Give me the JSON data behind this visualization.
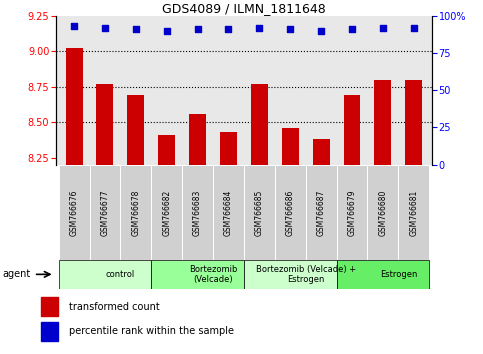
{
  "title": "GDS4089 / ILMN_1811648",
  "samples": [
    "GSM766676",
    "GSM766677",
    "GSM766678",
    "GSM766682",
    "GSM766683",
    "GSM766684",
    "GSM766685",
    "GSM766686",
    "GSM766687",
    "GSM766679",
    "GSM766680",
    "GSM766681"
  ],
  "bar_values": [
    9.02,
    8.77,
    8.69,
    8.41,
    8.56,
    8.43,
    8.77,
    8.46,
    8.38,
    8.69,
    8.8,
    8.8
  ],
  "percentile_values": [
    93,
    92,
    91,
    90,
    91,
    91,
    92,
    91,
    90,
    91,
    92,
    92
  ],
  "bar_color": "#cc0000",
  "dot_color": "#0000cc",
  "ylim_left": [
    8.2,
    9.25
  ],
  "ylim_right": [
    0,
    100
  ],
  "yticks_left": [
    8.25,
    8.5,
    8.75,
    9.0,
    9.25
  ],
  "yticks_right": [
    0,
    25,
    50,
    75,
    100
  ],
  "gridlines": [
    8.5,
    8.75,
    9.0
  ],
  "groups": [
    {
      "label": "control",
      "start": 0,
      "end": 3,
      "color": "#ccffcc"
    },
    {
      "label": "Bortezomib\n(Velcade)",
      "start": 3,
      "end": 6,
      "color": "#99ff99"
    },
    {
      "label": "Bortezomib (Velcade) +\nEstrogen",
      "start": 6,
      "end": 9,
      "color": "#ccffcc"
    },
    {
      "label": "Estrogen",
      "start": 9,
      "end": 12,
      "color": "#66ee66"
    }
  ],
  "agent_label": "agent",
  "legend_red": "transformed count",
  "legend_blue": "percentile rank within the sample",
  "bar_width": 0.55,
  "background_color": "#ffffff",
  "plot_bg_color": "#e8e8e8",
  "sample_box_color": "#d0d0d0"
}
